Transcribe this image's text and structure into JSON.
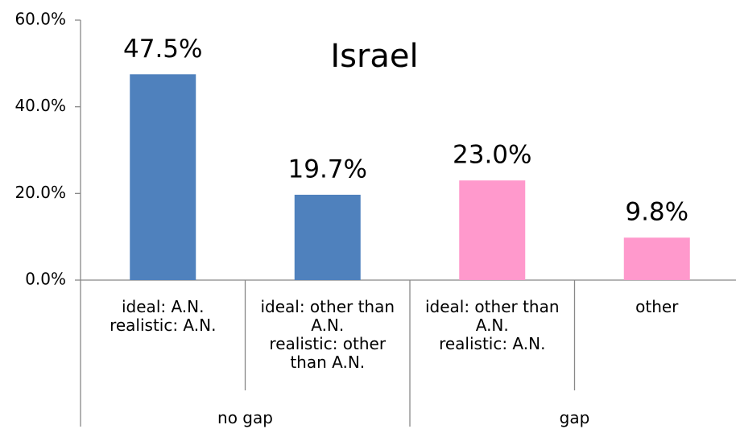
{
  "chart_data": {
    "type": "bar",
    "title": "Israel",
    "groups": [
      {
        "name": "no gap",
        "color": "#4f81bd",
        "categories": [
          "ideal: A.N.\nrealistic: A.N.",
          "ideal: other than\nA.N.\nrealistic: other\nthan A.N."
        ],
        "values": [
          47.5,
          19.7
        ],
        "value_labels": [
          "47.5%",
          "19.7%"
        ]
      },
      {
        "name": "gap",
        "color": "#ff99cc",
        "categories": [
          "ideal: other than\nA.N.\nrealistic: A.N.",
          "other"
        ],
        "values": [
          23.0,
          9.8
        ],
        "value_labels": [
          "23.0%",
          "9.8%"
        ]
      }
    ],
    "ylim": [
      0,
      60
    ],
    "yticks": [
      {
        "value": 0,
        "label": "0.0%"
      },
      {
        "value": 20,
        "label": "20.0%"
      },
      {
        "value": 40,
        "label": "40.0%"
      },
      {
        "value": 60,
        "label": "60.0%"
      }
    ],
    "grid": false
  }
}
